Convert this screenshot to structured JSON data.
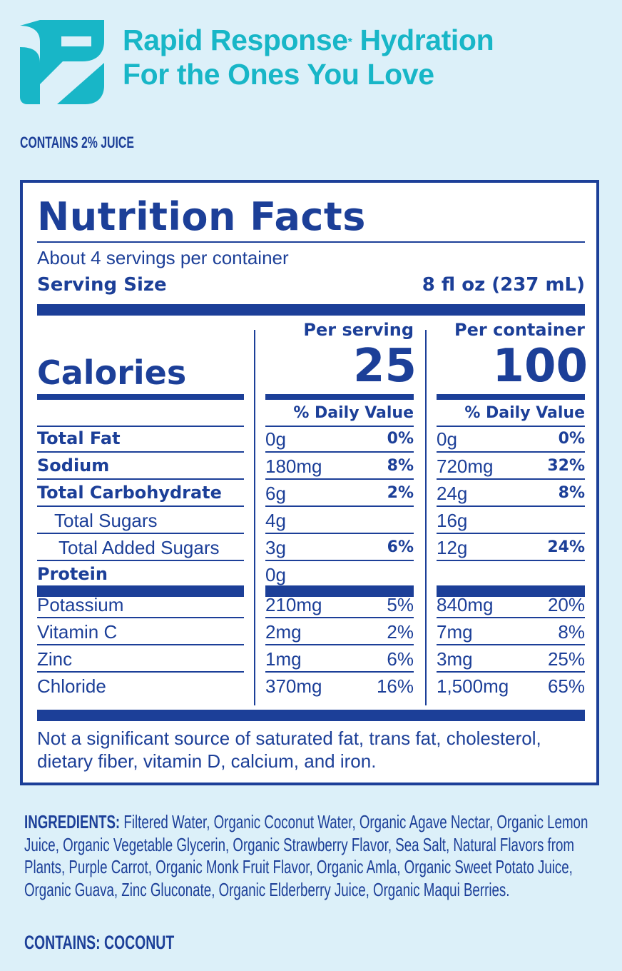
{
  "brand": {
    "tagline_line1": "Rapid Response",
    "tagline_mark": "*",
    "tagline_line1_end": "Hydration",
    "tagline_line2": "For the Ones You Love",
    "accent_color": "#18b6c7",
    "logo_icon": "leaf-logo-icon"
  },
  "juice_note": "CONTAINS 2% JUICE",
  "nutrition": {
    "title": "Nutrition Facts",
    "servings": "About 4 servings per container",
    "serving_size_label": "Serving Size",
    "serving_size_value": "8 fl oz (237 mL)",
    "per_serving_label": "Per serving",
    "per_container_label": "Per container",
    "calories_label": "Calories",
    "calories_serving": "25",
    "calories_container": "100",
    "dv_label": "% Daily Value",
    "rows": [
      {
        "name": "Total Fat",
        "s_amt": "0g",
        "s_pct": "0%",
        "c_amt": "0g",
        "c_pct": "0%"
      },
      {
        "name": "Sodium",
        "s_amt": "180mg",
        "s_pct": "8%",
        "c_amt": "720mg",
        "c_pct": "32%"
      },
      {
        "name": "Total Carbohydrate",
        "s_amt": "6g",
        "s_pct": "2%",
        "c_amt": "24g",
        "c_pct": "8%"
      },
      {
        "name": "Total Sugars",
        "s_amt": "4g",
        "s_pct": "",
        "c_amt": "16g",
        "c_pct": ""
      },
      {
        "name": "Total Added Sugars",
        "s_amt": "3g",
        "s_pct": "6%",
        "c_amt": "12g",
        "c_pct": "24%"
      },
      {
        "name": "Protein",
        "s_amt": "0g",
        "s_pct": "",
        "c_amt": "",
        "c_pct": ""
      },
      {
        "name": "Potassium",
        "s_amt": "210mg",
        "s_pct": "5%",
        "c_amt": "840mg",
        "c_pct": "20%"
      },
      {
        "name": "Vitamin C",
        "s_amt": "2mg",
        "s_pct": "2%",
        "c_amt": "7mg",
        "c_pct": "8%"
      },
      {
        "name": "Zinc",
        "s_amt": "1mg",
        "s_pct": "6%",
        "c_amt": "3mg",
        "c_pct": "25%"
      },
      {
        "name": "Chloride",
        "s_amt": "370mg",
        "s_pct": "16%",
        "c_amt": "1,500mg",
        "c_pct": "65%"
      }
    ],
    "footnote": "Not a significant source of saturated fat, trans fat, cholesterol, dietary fiber, vitamin D, calcium, and iron."
  },
  "ingredients": {
    "label": "INGREDIENTS:",
    "text": "Filtered Water, Organic Coconut Water, Organic Agave Nectar, Organic Lemon Juice, Organic Vegetable Glycerin, Organic Strawberry Flavor, Sea Salt, Natural Flavors from Plants, Purple Carrot, Organic Monk Fruit Flavor, Organic Amla, Organic Sweet Potato Juice, Organic Guava, Zinc Gluconate, Organic Elderberry Juice, Organic Maqui Berries."
  },
  "allergen": "CONTAINS: COCONUT",
  "colors": {
    "ink": "#1c3f98",
    "background": "#dcf0f9",
    "panel": "#ffffff"
  }
}
